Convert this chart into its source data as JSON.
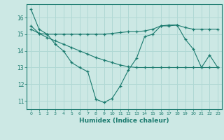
{
  "xlabel": "Humidex (Indice chaleur)",
  "background_color": "#cce8e4",
  "grid_color": "#b0d8d4",
  "line_color": "#1a7a6e",
  "xlim": [
    -0.5,
    23.5
  ],
  "ylim": [
    10.5,
    16.8
  ],
  "xticks": [
    0,
    1,
    2,
    3,
    4,
    5,
    6,
    7,
    8,
    9,
    10,
    11,
    12,
    13,
    14,
    15,
    16,
    17,
    18,
    19,
    20,
    21,
    22,
    23
  ],
  "yticks": [
    11,
    12,
    13,
    14,
    15,
    16
  ],
  "series1_x": [
    0,
    1,
    2,
    3,
    4,
    5,
    6,
    7,
    8,
    9,
    10,
    11,
    12,
    13,
    14,
    15,
    16,
    17,
    18,
    19,
    20,
    21,
    22,
    23
  ],
  "series1_y": [
    16.5,
    15.3,
    15.0,
    14.4,
    14.0,
    13.3,
    13.0,
    12.75,
    11.1,
    10.9,
    11.15,
    11.9,
    12.85,
    13.55,
    14.85,
    15.0,
    15.5,
    15.5,
    15.55,
    14.7,
    14.1,
    13.0,
    13.75,
    13.0
  ],
  "series2_x": [
    0,
    1,
    2,
    3,
    4,
    5,
    6,
    7,
    8,
    9,
    10,
    11,
    12,
    13,
    14,
    15,
    16,
    17,
    18,
    19,
    20,
    21,
    22,
    23
  ],
  "series2_y": [
    15.5,
    15.05,
    15.0,
    15.0,
    15.0,
    15.0,
    15.0,
    15.0,
    15.0,
    15.0,
    15.05,
    15.1,
    15.15,
    15.15,
    15.2,
    15.3,
    15.5,
    15.55,
    15.55,
    15.4,
    15.3,
    15.3,
    15.3,
    15.3
  ],
  "series3_x": [
    0,
    1,
    2,
    3,
    4,
    5,
    6,
    7,
    8,
    9,
    10,
    11,
    12,
    13,
    14,
    15,
    16,
    17,
    18,
    19,
    20,
    21,
    22,
    23
  ],
  "series3_y": [
    15.3,
    15.05,
    14.8,
    14.6,
    14.4,
    14.2,
    14.0,
    13.8,
    13.6,
    13.45,
    13.3,
    13.15,
    13.05,
    13.0,
    13.0,
    13.0,
    13.0,
    13.0,
    13.0,
    13.0,
    13.0,
    13.0,
    13.0,
    13.0
  ]
}
